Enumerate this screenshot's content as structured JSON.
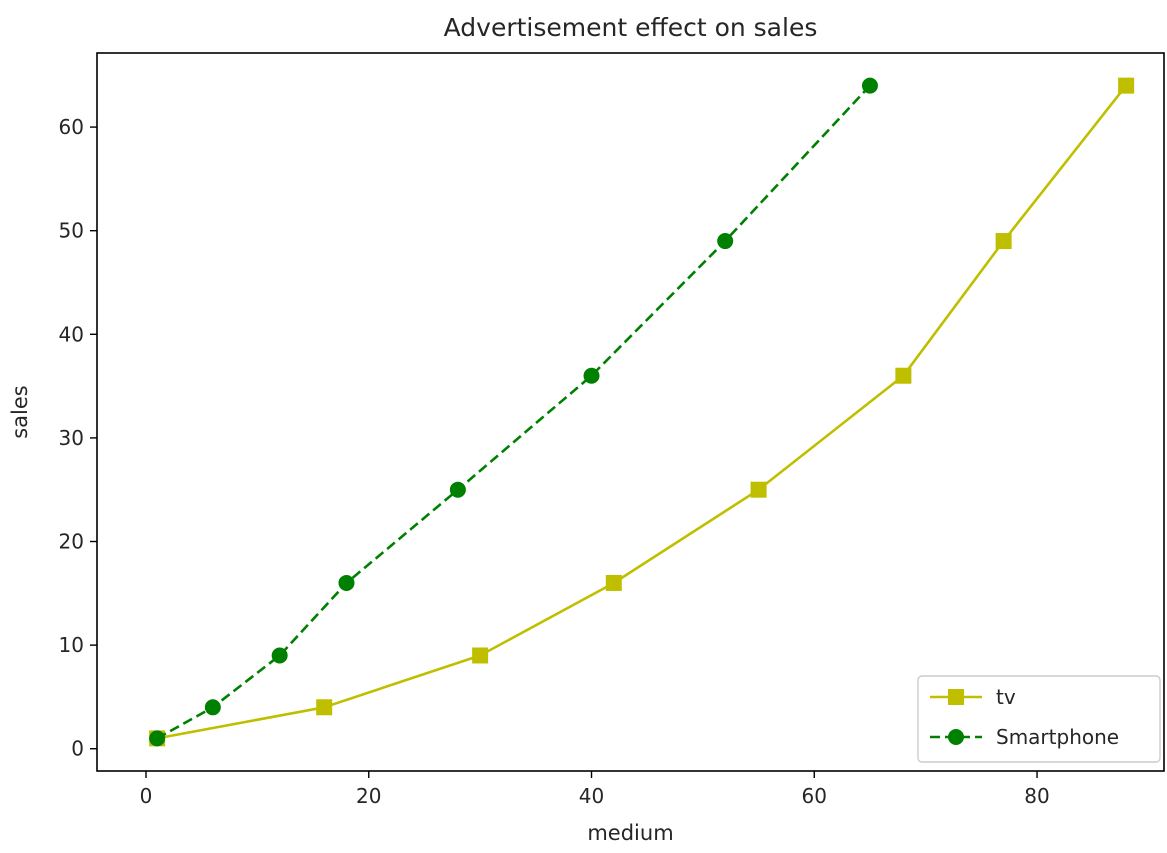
{
  "chart_data": {
    "type": "line",
    "title": "Advertisement effect on sales",
    "xlabel": "medium",
    "ylabel": "sales",
    "xlim": [
      -4.4,
      91.4
    ],
    "ylim": [
      -2.15,
      67.15
    ],
    "xticks": [
      0,
      20,
      40,
      60,
      80
    ],
    "yticks": [
      0,
      10,
      20,
      30,
      40,
      50,
      60
    ],
    "grid": false,
    "legend_position": "lower right",
    "series": [
      {
        "name": "tv",
        "color": "#bfbf00",
        "linestyle": "solid",
        "marker": "square",
        "x": [
          1,
          16,
          30,
          42,
          55,
          68,
          77,
          88
        ],
        "y": [
          1,
          4,
          9,
          16,
          25,
          36,
          49,
          64
        ]
      },
      {
        "name": "Smartphone",
        "color": "#008000",
        "linestyle": "dashed",
        "marker": "circle",
        "x": [
          1,
          6,
          12,
          18,
          28,
          40,
          52,
          65
        ],
        "y": [
          1,
          4,
          9,
          16,
          25,
          36,
          49,
          64
        ]
      }
    ]
  }
}
